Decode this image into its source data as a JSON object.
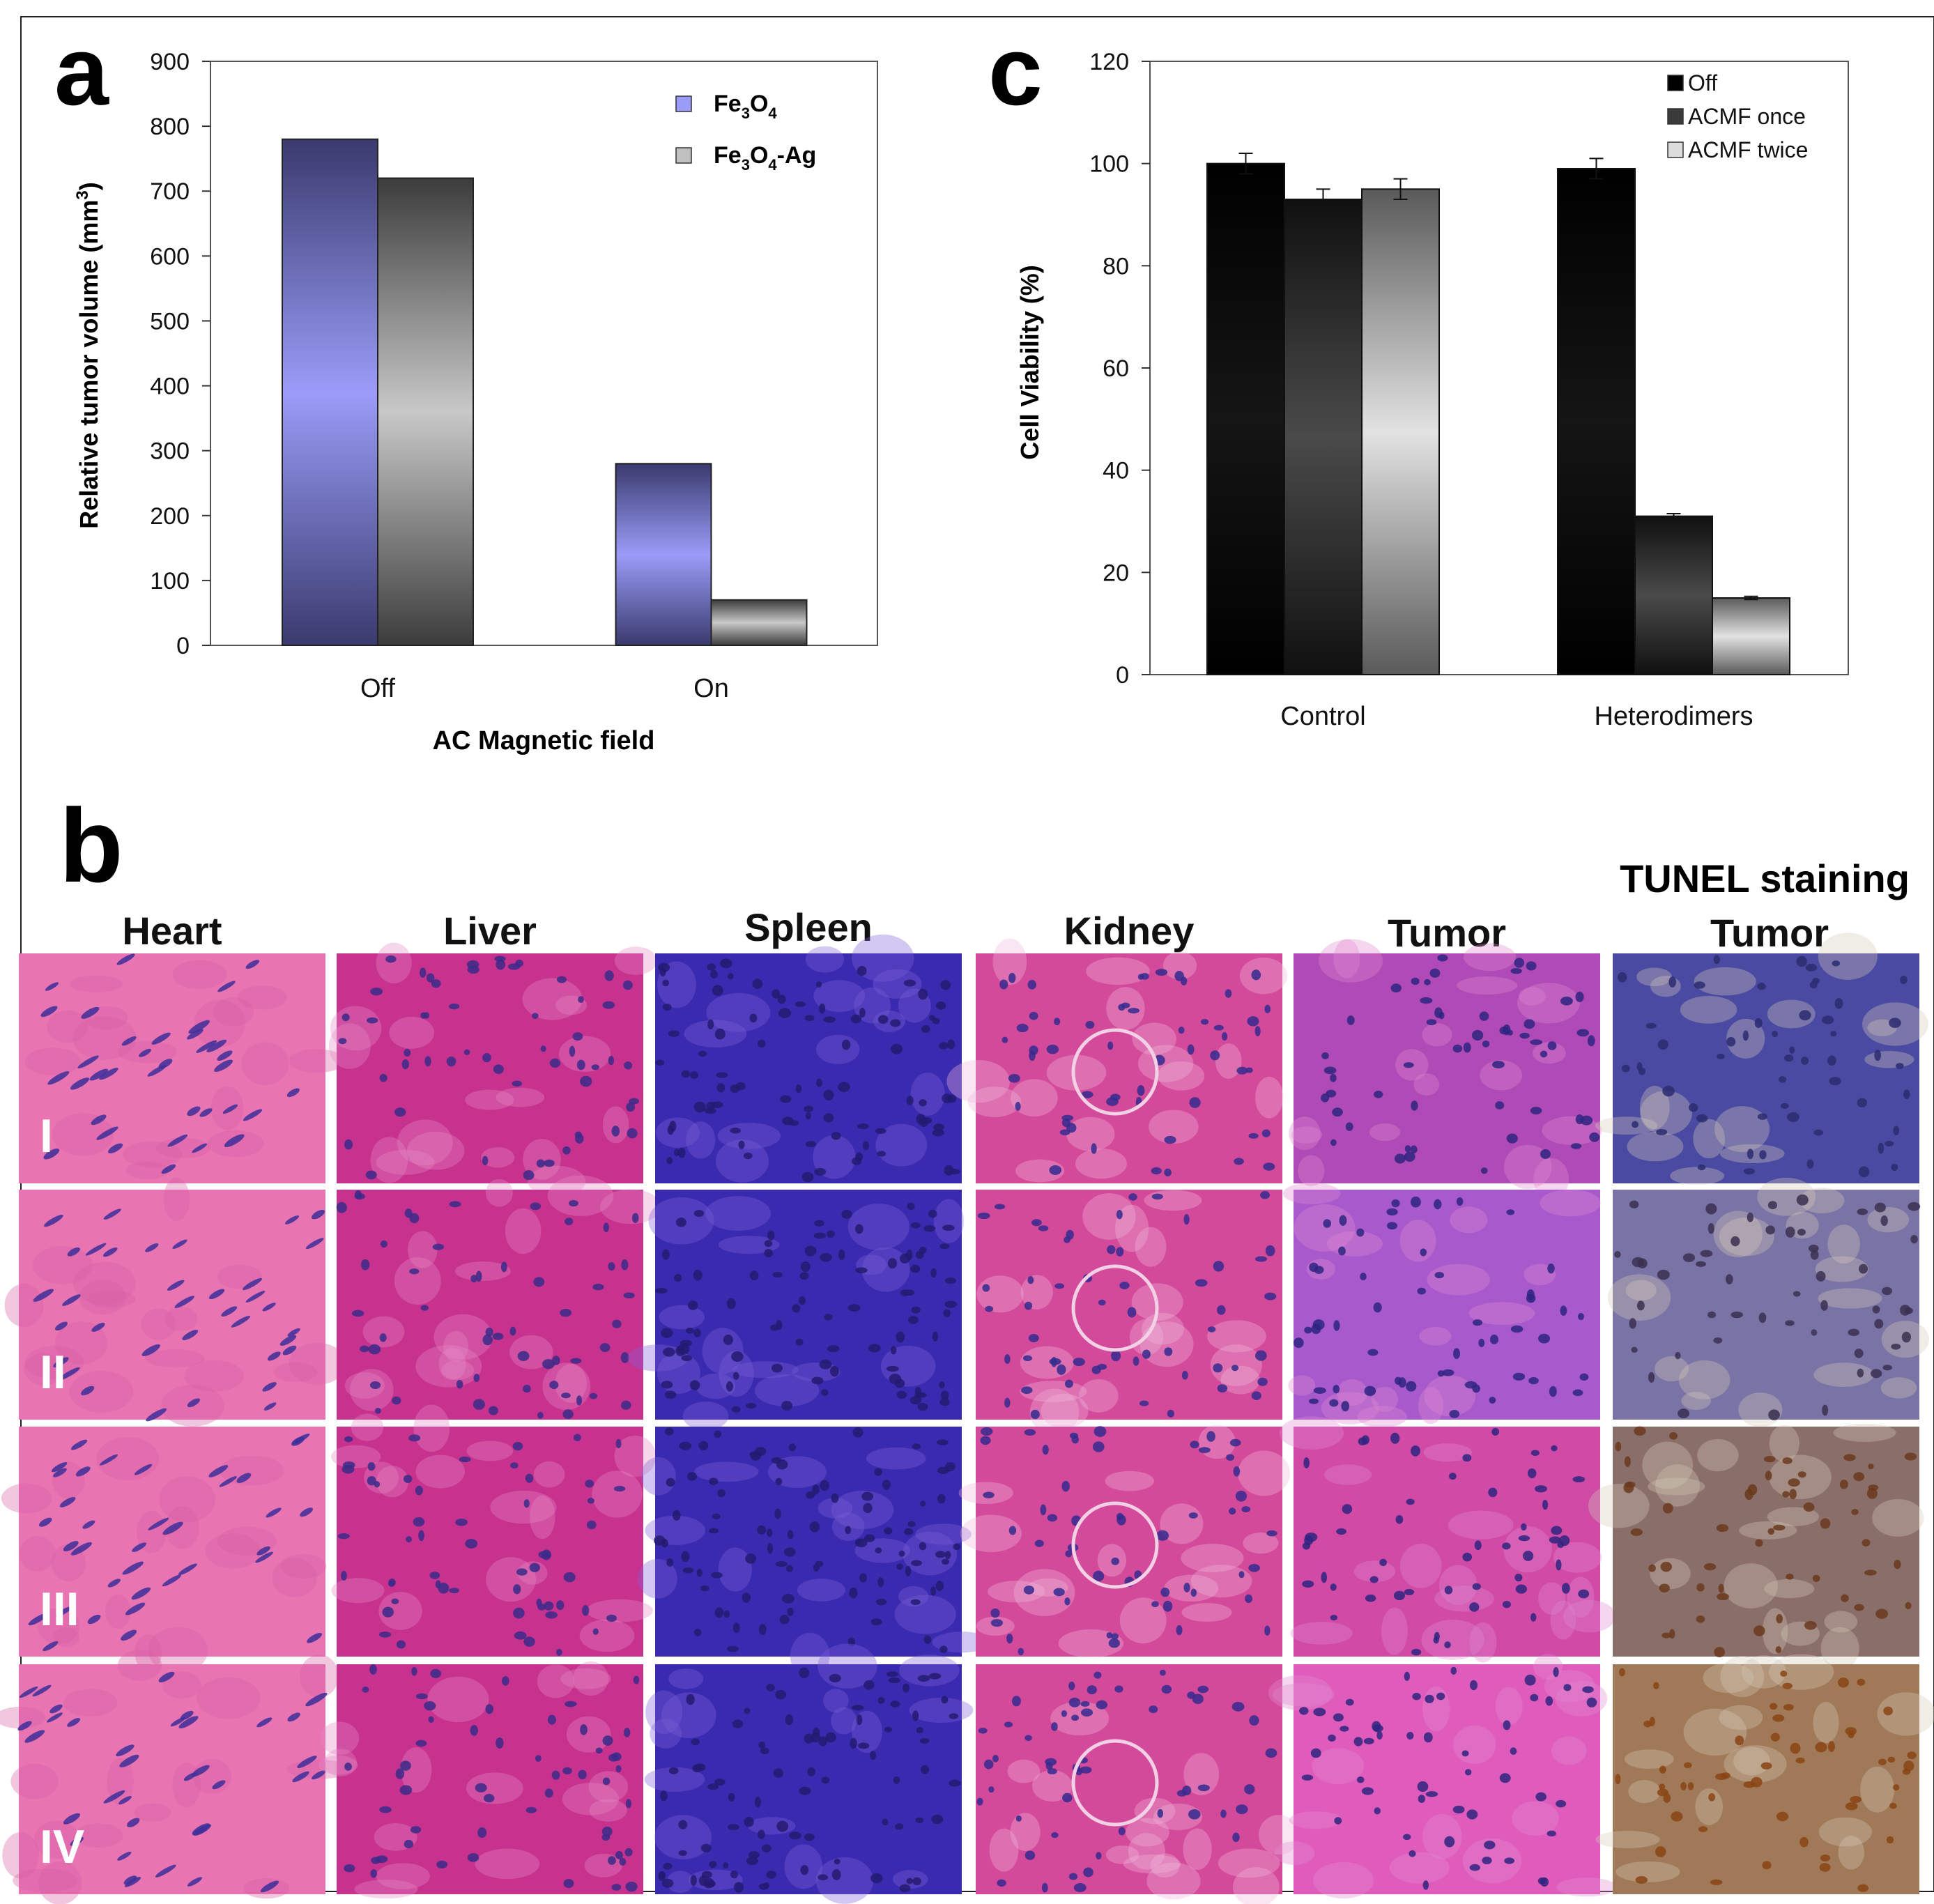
{
  "panel_a": {
    "label": "a",
    "ylabel_main": "Relative tumor volume (mm",
    "ylabel_sup": "3",
    "ylabel_end": ")",
    "xlabel": "AC Magnetic field",
    "legend": [
      {
        "base": "Fe",
        "sub1": "3",
        "mid": "O",
        "sub2": "4",
        "tail": ""
      },
      {
        "base": "Fe",
        "sub1": "3",
        "mid": "O",
        "sub2": "4",
        "tail": "-Ag"
      }
    ]
  },
  "panel_c": {
    "label": "c",
    "ylabel": "Cell Viability (%)"
  },
  "panel_b": {
    "label": "b",
    "extra_header": "TUNEL staining",
    "columns": [
      "Heart",
      "Liver",
      "Spleen",
      "Kidney",
      "Tumor",
      "Tumor"
    ],
    "rows": [
      "I",
      "II",
      "III",
      "IV"
    ]
  },
  "colors": {
    "fe3o4_bar": "#9a9cf8",
    "fe3o4ag_bar": "#c0c0c0",
    "off_bar": "#000000",
    "acmf_once_bar": "#3a3a3a",
    "acmf_twice_bar": "#dcdcdc"
  },
  "chart_data": [
    {
      "type": "bar",
      "categories": [
        "Off",
        "On"
      ],
      "series": [
        {
          "name": "Fe3O4",
          "values": [
            780,
            280
          ]
        },
        {
          "name": "Fe3O4-Ag",
          "values": [
            720,
            70
          ]
        }
      ],
      "xlabel": "AC Magnetic field",
      "ylabel": "Relative tumor volume (mm3)",
      "ylim": [
        0,
        900
      ],
      "yticks": [
        0,
        100,
        200,
        300,
        400,
        500,
        600,
        700,
        800,
        900
      ],
      "legend_position": "top-right",
      "grid": false
    },
    {
      "type": "bar",
      "categories": [
        "Control",
        "Heterodimers"
      ],
      "series": [
        {
          "name": "Off",
          "values": [
            100,
            99
          ],
          "errors": [
            2,
            2
          ]
        },
        {
          "name": "ACMF once",
          "values": [
            93,
            31
          ],
          "errors": [
            2,
            0.5
          ]
        },
        {
          "name": "ACMF twice",
          "values": [
            95,
            15
          ],
          "errors": [
            2,
            0.3
          ]
        }
      ],
      "xlabel": "",
      "ylabel": "Cell Viability (%)",
      "ylim": [
        0,
        120
      ],
      "yticks": [
        0,
        20,
        40,
        60,
        80,
        100,
        120
      ],
      "legend_position": "top-right",
      "grid": false
    }
  ]
}
